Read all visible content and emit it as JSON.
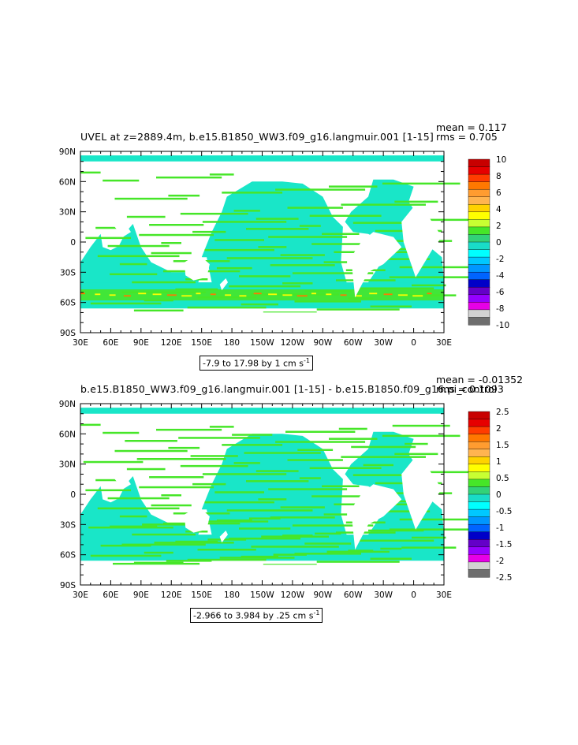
{
  "chart_data": [
    {
      "type": "heatmap",
      "title": "UVEL at z=2889.4m, b.e15.B1850_WW3.f09_g16.langmuir.001 [1-15]",
      "stats": {
        "mean": "mean = 0.117",
        "rms": "rms = 0.705"
      },
      "caption": "-7.9 to 17.98 by 1 cm s",
      "caption_sup": "-1",
      "x_ticks": [
        "30E",
        "60E",
        "90E",
        "120E",
        "150E",
        "180",
        "150W",
        "120W",
        "90W",
        "60W",
        "30W",
        "0",
        "30E"
      ],
      "y_ticks": [
        "90N",
        "60N",
        "30N",
        "0",
        "30S",
        "60S",
        "90S"
      ],
      "colorbar": {
        "labels": [
          "10",
          "8",
          "6",
          "4",
          "2",
          "0",
          "-2",
          "-4",
          "-6",
          "-8",
          "-10"
        ],
        "range": [
          -10,
          10
        ],
        "colors": [
          "#c80000",
          "#e60000",
          "#ff3c00",
          "#ff7800",
          "#ff9c30",
          "#ffb450",
          "#ffd200",
          "#ffff00",
          "#c8ff32",
          "#46e628",
          "#32d278",
          "#19dcc8",
          "#00ffff",
          "#00c8ff",
          "#0096ff",
          "#0064ff",
          "#0000c8",
          "#6400c8",
          "#9600ff",
          "#e600e6",
          "#d2d2d2",
          "#6e6e6e"
        ]
      }
    },
    {
      "type": "heatmap",
      "title": "b.e15.B1850_WW3.f09_g16.langmuir.001 [1-15] - b.e15.B1850.f09_g16.pi_control",
      "stats": {
        "mean": "mean = -0.01352",
        "rms": "rms = 0.1093"
      },
      "caption": "-2.966 to 3.984 by .25 cm s",
      "caption_sup": "-1",
      "x_ticks": [
        "30E",
        "60E",
        "90E",
        "120E",
        "150E",
        "180",
        "150W",
        "120W",
        "90W",
        "60W",
        "30W",
        "0",
        "30E"
      ],
      "y_ticks": [
        "90N",
        "60N",
        "30N",
        "0",
        "30S",
        "60S",
        "90S"
      ],
      "colorbar": {
        "labels": [
          "2.5",
          "2",
          "1.5",
          "1",
          "0.5",
          "0",
          "-0.5",
          "-1",
          "-1.5",
          "-2",
          "-2.5"
        ],
        "range": [
          -2.5,
          2.5
        ],
        "colors": [
          "#c80000",
          "#e60000",
          "#ff3c00",
          "#ff7800",
          "#ff9c30",
          "#ffb450",
          "#ffd200",
          "#ffff00",
          "#c8ff32",
          "#46e628",
          "#32d278",
          "#19dcc8",
          "#00ffff",
          "#00c8ff",
          "#0096ff",
          "#0064ff",
          "#0000c8",
          "#6400c8",
          "#9600ff",
          "#e600e6",
          "#d2d2d2",
          "#6e6e6e"
        ]
      }
    }
  ]
}
